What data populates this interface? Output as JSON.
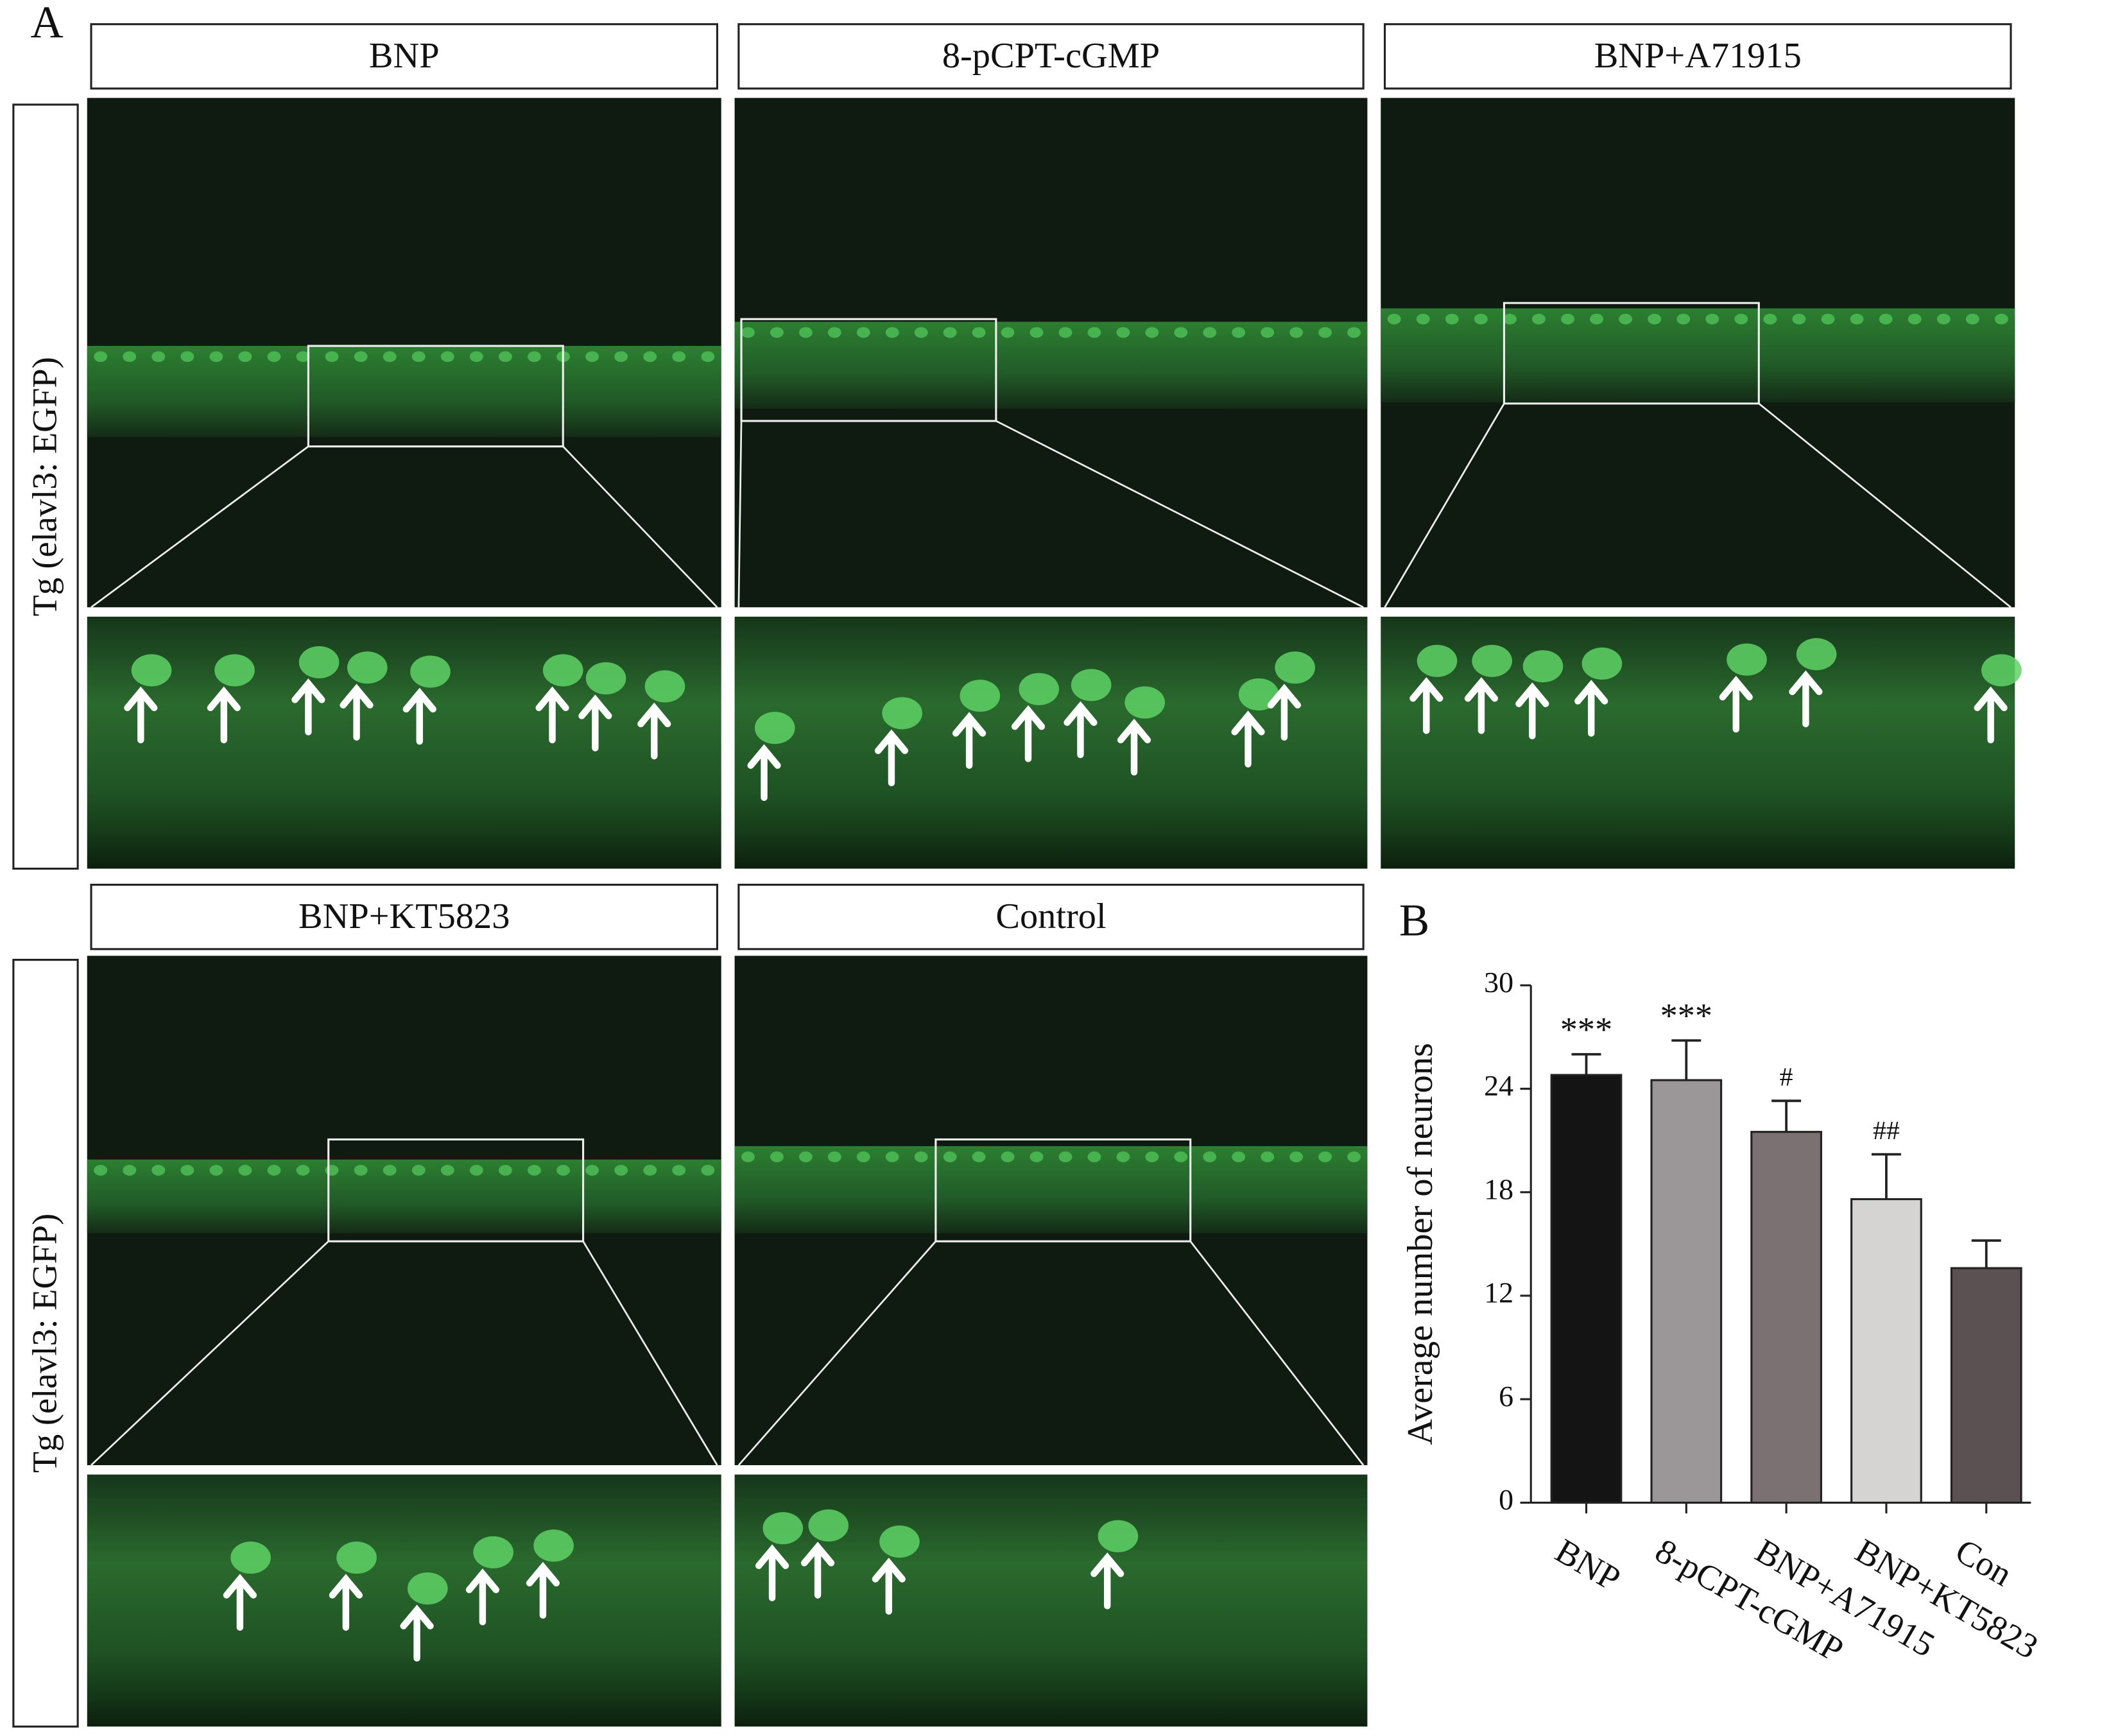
{
  "panel_labels": [
    "A",
    "B"
  ],
  "row_label": "Tg (elavl3: EGFP)",
  "image_panels": [
    "BNP",
    "8-pCPT-cGMP",
    "BNP+A71915",
    "BNP+KT5823",
    "Control"
  ],
  "chart_data": {
    "type": "bar",
    "ylabel": "Average number of neurons",
    "categories": [
      "BNP",
      "8-pCPT-cGMP",
      "BNP+A71915",
      "BNP+KT5823",
      "Con"
    ],
    "values": [
      24.8,
      24.5,
      21.5,
      17.6,
      13.6
    ],
    "errors": [
      1.2,
      2.3,
      1.8,
      2.6,
      1.6
    ],
    "colors": [
      "#141414",
      "#9b9697",
      "#7b7173",
      "#d6d3d3",
      "#5b5153"
    ],
    "annotations": [
      "***",
      "***",
      "#",
      "##",
      null
    ],
    "ylim": [
      0,
      30
    ],
    "yticks": [
      0,
      6,
      12,
      18,
      24,
      30
    ]
  }
}
